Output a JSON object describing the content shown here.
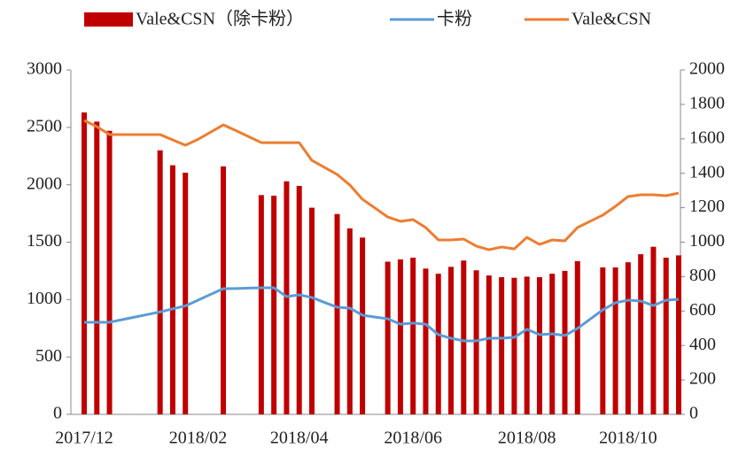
{
  "chart_data": {
    "type": "bar",
    "categories": [
      "2017/12",
      null,
      null,
      null,
      null,
      null,
      null,
      null,
      null,
      "2018/02",
      null,
      null,
      null,
      null,
      null,
      null,
      null,
      "2018/04",
      null,
      null,
      null,
      null,
      null,
      null,
      null,
      null,
      "2018/06",
      null,
      null,
      null,
      null,
      null,
      null,
      null,
      null,
      "2018/08",
      null,
      null,
      null,
      null,
      null,
      null,
      null,
      "2018/10",
      null,
      null,
      null,
      null
    ],
    "series": [
      {
        "name": "Vale&CSN（除卡粉）",
        "color": "#c00000",
        "type": "bar",
        "values": [
          2630,
          2550,
          2470,
          null,
          null,
          null,
          2300,
          2170,
          2105,
          null,
          null,
          2160,
          null,
          null,
          1910,
          1905,
          2030,
          1990,
          1800,
          null,
          1745,
          1620,
          1540,
          null,
          1330,
          1350,
          1365,
          1270,
          1225,
          1285,
          1340,
          1255,
          1210,
          1195,
          1190,
          1200,
          1195,
          1225,
          1250,
          1335,
          null,
          1280,
          1280,
          1325,
          1395,
          1460,
          1365,
          1385
        ]
      },
      {
        "name": "卡粉",
        "color": "#5b9bd5",
        "type": "line",
        "axis": "y2",
        "values": [
          535,
          535,
          535,
          550,
          565,
          580,
          595,
          613,
          630,
          663,
          697,
          730,
          731,
          733,
          735,
          735,
          684,
          694,
          679,
          650,
          622,
          617,
          576,
          565,
          555,
          524,
          530,
          524,
          463,
          442,
          427,
          427,
          442,
          442,
          447,
          494,
          463,
          468,
          458,
          499,
          553,
          607,
          648,
          663,
          658,
          632,
          663,
          668
        ]
      },
      {
        "name": "Vale&CSN",
        "color": "#ed7d31",
        "type": "line",
        "axis": "y2",
        "values": [
          1707,
          1671,
          1625,
          1625,
          1625,
          1625,
          1625,
          1594,
          1563,
          1597,
          1639,
          1681,
          1648,
          1613,
          1578,
          1578,
          1578,
          1578,
          1475,
          1434,
          1393,
          1332,
          1249,
          1198,
          1146,
          1121,
          1131,
          1085,
          1013,
          1013,
          1018,
          977,
          956,
          972,
          961,
          1028,
          987,
          1013,
          1008,
          1085,
          1121,
          1157,
          1208,
          1265,
          1275,
          1275,
          1270,
          1285
        ]
      }
    ],
    "ylim": [
      0,
      3000
    ],
    "yticks": [
      0,
      500,
      1000,
      1500,
      2000,
      2500,
      3000
    ],
    "y2lim": [
      0,
      2000
    ],
    "y2ticks": [
      0,
      200,
      400,
      600,
      800,
      1000,
      1200,
      1400,
      1600,
      1800,
      2000
    ],
    "legend": "top"
  }
}
